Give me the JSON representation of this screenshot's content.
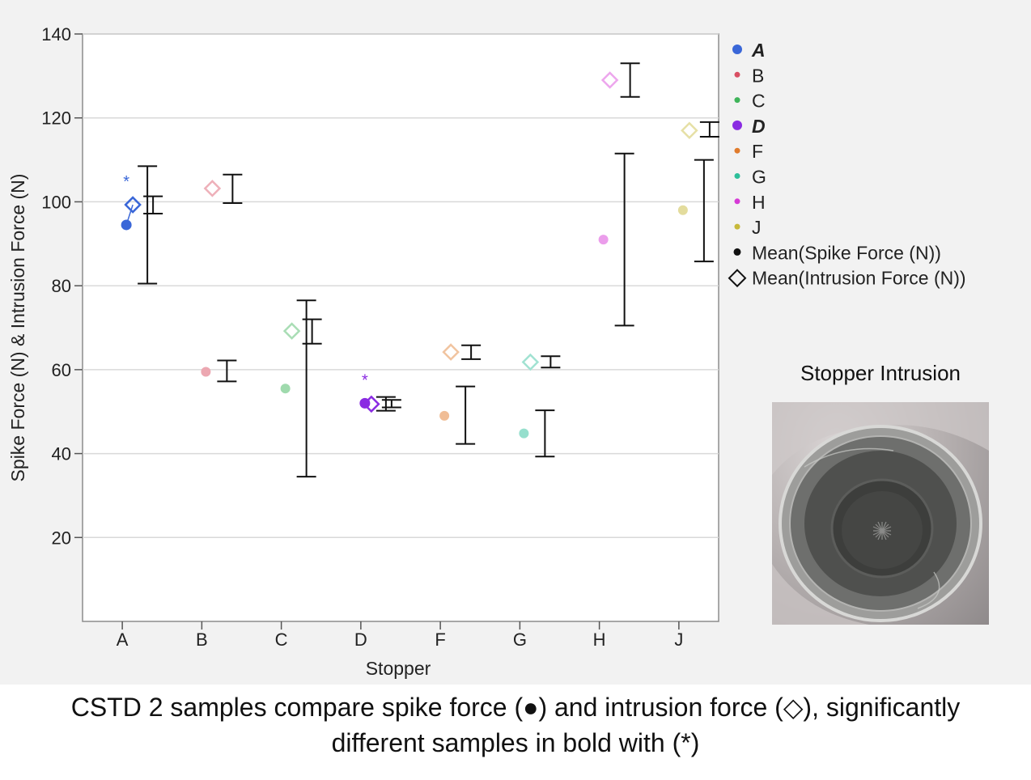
{
  "chart_data": {
    "type": "scatter",
    "xlabel": "Stopper",
    "ylabel": "Spike Force (N) & Intrusion Force (N)",
    "ylim": [
      0,
      140
    ],
    "yticks": [
      20,
      40,
      60,
      80,
      100,
      120,
      140
    ],
    "categories": [
      "A",
      "B",
      "C",
      "D",
      "F",
      "G",
      "H",
      "J"
    ],
    "grid": "horizontal",
    "legend_position": "right",
    "series_colors": {
      "A": "#3a67d8",
      "B": "#d94f63",
      "C": "#3fb45a",
      "D": "#8a2be2",
      "F": "#e07b2c",
      "G": "#2dbf9a",
      "H": "#d63ad6",
      "J": "#c7b93a"
    },
    "significant": [
      "A",
      "D"
    ],
    "spike_force": {
      "mean": [
        94.5,
        59.5,
        55.5,
        52,
        49,
        44.8,
        91,
        98
      ],
      "ci_low": [
        80.5,
        57.2,
        34.5,
        50.2,
        42.3,
        39.3,
        70.5,
        85.8
      ],
      "ci_high": [
        108.5,
        62.2,
        76.5,
        53.5,
        56,
        50.3,
        111.5,
        110
      ]
    },
    "intrusion_force": {
      "mean": [
        99.3,
        103.2,
        69.2,
        51.8,
        64.2,
        61.8,
        129,
        117
      ],
      "ci_low": [
        97.2,
        99.7,
        66.2,
        51,
        62.5,
        60.5,
        125,
        115.5
      ],
      "ci_high": [
        101.3,
        106.5,
        72,
        52.8,
        65.8,
        63.2,
        133,
        119
      ]
    },
    "legend": {
      "entries": [
        "A",
        "B",
        "C",
        "D",
        "F",
        "G",
        "H",
        "J"
      ],
      "mean_spike_label": "Mean(Spike Force (N))",
      "mean_intrusion_label": "Mean(Intrusion Force (N))"
    },
    "annotation_star": "*"
  },
  "inset": {
    "title": "Stopper  Intrusion"
  },
  "caption": {
    "line1": "CSTD 2 samples compare spike force (●) and intrusion force (◇), significantly",
    "line2": "different samples in bold with (*)"
  }
}
